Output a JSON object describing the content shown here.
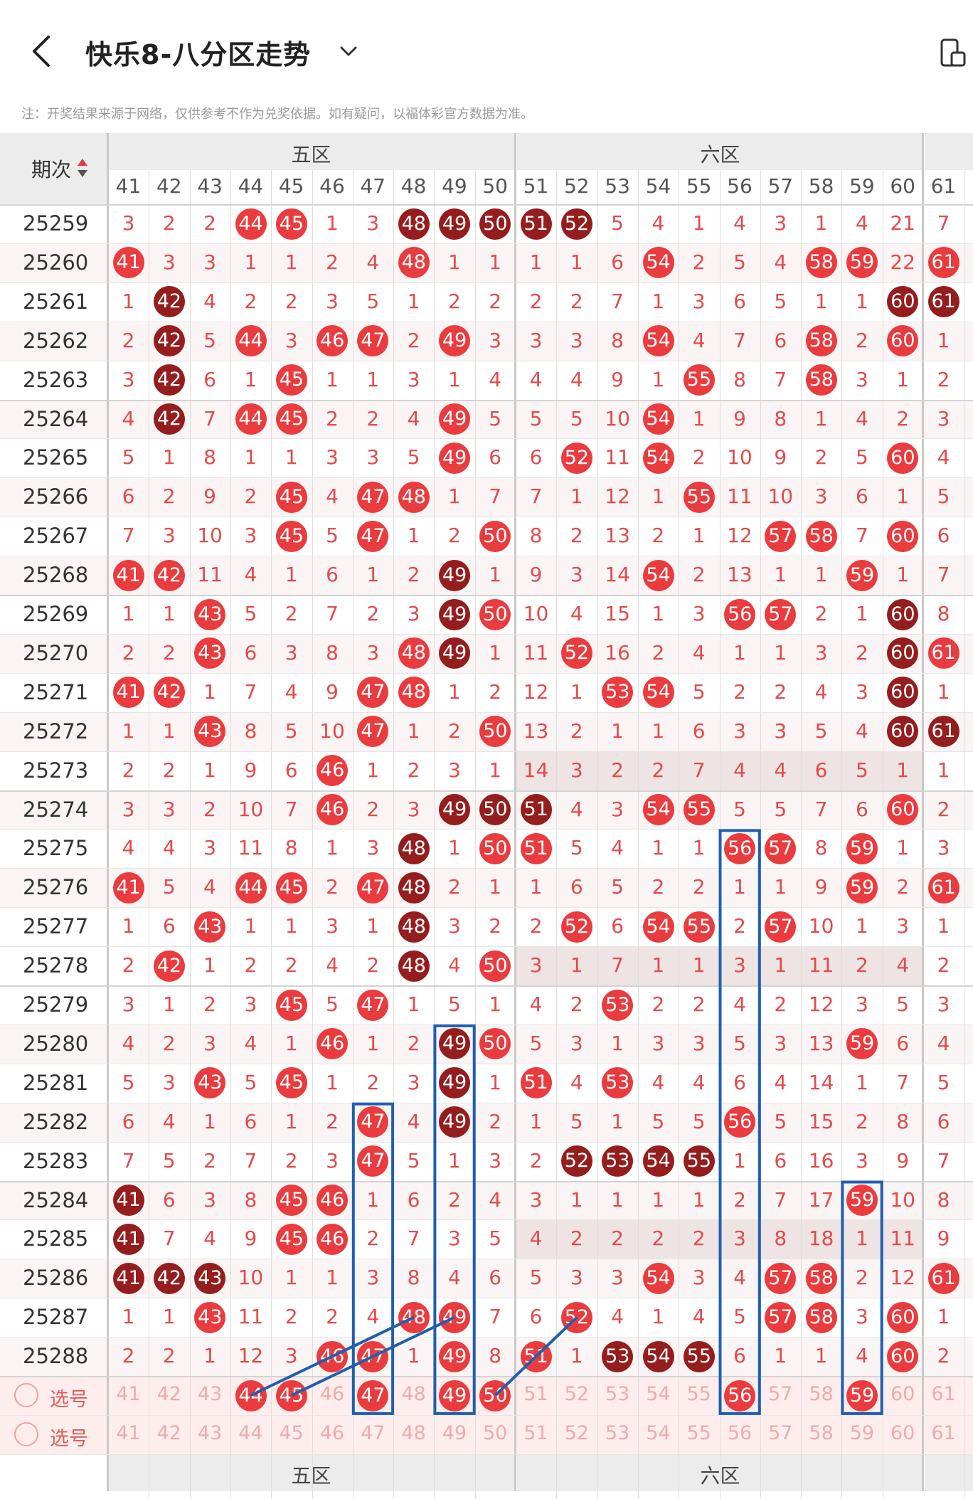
{
  "header": {
    "title": "快乐8-八分区走势"
  },
  "note": "注：开奖结果来源于网络，仅供参考不作为兑奖依据。如有疑问，以福体彩官方数据为准。",
  "table_header": {
    "period_label": "期次"
  },
  "zones": [
    {
      "label": "五区"
    },
    {
      "label": "六区"
    }
  ],
  "columns": [
    "41",
    "42",
    "43",
    "44",
    "45",
    "46",
    "47",
    "48",
    "49",
    "50",
    "51",
    "52",
    "53",
    "54",
    "55",
    "56",
    "57",
    "58",
    "59",
    "60",
    "61"
  ],
  "pick_label": "选号",
  "rows": [
    {
      "period": "25259",
      "cells": [
        "3",
        "2",
        "2",
        "44r",
        "45r",
        "1",
        "3",
        "48d",
        "49d",
        "50d",
        "51d",
        "52d",
        "5",
        "4",
        "1",
        "4",
        "3",
        "1",
        "4",
        "21",
        "7"
      ]
    },
    {
      "period": "25260",
      "cells": [
        "41r",
        "3",
        "3",
        "1",
        "1",
        "2",
        "4",
        "48r",
        "1",
        "1",
        "1",
        "1",
        "6",
        "54r",
        "2",
        "5",
        "4",
        "58r",
        "59r",
        "22",
        "61r"
      ]
    },
    {
      "period": "25261",
      "cells": [
        "1",
        "42d",
        "4",
        "2",
        "2",
        "3",
        "5",
        "1",
        "2",
        "2",
        "2",
        "2",
        "7",
        "1",
        "3",
        "6",
        "5",
        "1",
        "1",
        "60d",
        "61d"
      ]
    },
    {
      "period": "25262",
      "cells": [
        "2",
        "42d",
        "5",
        "44r",
        "3",
        "46r",
        "47r",
        "2",
        "49r",
        "3",
        "3",
        "3",
        "8",
        "54r",
        "4",
        "7",
        "6",
        "58r",
        "2",
        "60r",
        "1"
      ]
    },
    {
      "period": "25263",
      "cells": [
        "3",
        "42d",
        "6",
        "1",
        "45r",
        "1",
        "1",
        "3",
        "1",
        "4",
        "4",
        "4",
        "9",
        "1",
        "55r",
        "8",
        "7",
        "58r",
        "3",
        "1",
        "2"
      ]
    },
    {
      "period": "25264",
      "cells": [
        "4",
        "42d",
        "7",
        "44r",
        "45r",
        "2",
        "2",
        "4",
        "49r",
        "5",
        "5",
        "5",
        "10",
        "54r",
        "1",
        "9",
        "8",
        "1",
        "4",
        "2",
        "3"
      ]
    },
    {
      "period": "25265",
      "cells": [
        "5",
        "1",
        "8",
        "1",
        "1",
        "3",
        "3",
        "5",
        "49r",
        "6",
        "6",
        "52r",
        "11",
        "54r",
        "2",
        "10",
        "9",
        "2",
        "5",
        "60r",
        "4"
      ]
    },
    {
      "period": "25266",
      "cells": [
        "6",
        "2",
        "9",
        "2",
        "45r",
        "4",
        "47r",
        "48r",
        "1",
        "7",
        "7",
        "1",
        "12",
        "1",
        "55r",
        "11",
        "10",
        "3",
        "6",
        "1",
        "5"
      ]
    },
    {
      "period": "25267",
      "cells": [
        "7",
        "3",
        "10",
        "3",
        "45r",
        "5",
        "47r",
        "1",
        "2",
        "50r",
        "8",
        "2",
        "13",
        "2",
        "1",
        "12",
        "57r",
        "58r",
        "7",
        "60r",
        "6"
      ]
    },
    {
      "period": "25268",
      "cells": [
        "41r",
        "42r",
        "11",
        "4",
        "1",
        "6",
        "1",
        "2",
        "49d",
        "1",
        "9",
        "3",
        "14",
        "54r",
        "2",
        "13",
        "1",
        "1",
        "59r",
        "1",
        "7"
      ]
    },
    {
      "period": "25269",
      "cells": [
        "1",
        "1",
        "43r",
        "5",
        "2",
        "7",
        "2",
        "3",
        "49d",
        "50r",
        "10",
        "4",
        "15",
        "1",
        "3",
        "56r",
        "57r",
        "2",
        "1",
        "60d",
        "8"
      ]
    },
    {
      "period": "25270",
      "cells": [
        "2",
        "2",
        "43r",
        "6",
        "3",
        "8",
        "3",
        "48r",
        "49d",
        "1",
        "11",
        "52r",
        "16",
        "2",
        "4",
        "1",
        "1",
        "3",
        "2",
        "60d",
        "61r"
      ]
    },
    {
      "period": "25271",
      "cells": [
        "41r",
        "42r",
        "1",
        "7",
        "4",
        "9",
        "47r",
        "48r",
        "1",
        "2",
        "12",
        "1",
        "53r",
        "54r",
        "5",
        "2",
        "2",
        "4",
        "3",
        "60d",
        "1"
      ]
    },
    {
      "period": "25272",
      "cells": [
        "1",
        "1",
        "43r",
        "8",
        "5",
        "10",
        "47r",
        "1",
        "2",
        "50r",
        "13",
        "2",
        "1",
        "1",
        "6",
        "3",
        "3",
        "5",
        "4",
        "60d",
        "61d"
      ]
    },
    {
      "period": "25273",
      "cells": [
        "2",
        "2",
        "1",
        "9",
        "6",
        "46r",
        "1",
        "2",
        "3",
        "1",
        "14",
        "3",
        "2",
        "2",
        "7",
        "4",
        "4",
        "6",
        "5",
        "1",
        "1"
      ],
      "hl": true
    },
    {
      "period": "25274",
      "cells": [
        "3",
        "3",
        "2",
        "10",
        "7",
        "46r",
        "2",
        "3",
        "49d",
        "50d",
        "51d",
        "4",
        "3",
        "54r",
        "55r",
        "5",
        "5",
        "7",
        "6",
        "60r",
        "2"
      ]
    },
    {
      "period": "25275",
      "cells": [
        "4",
        "4",
        "3",
        "11",
        "8",
        "1",
        "3",
        "48d",
        "1",
        "50r",
        "51r",
        "5",
        "4",
        "1",
        "1",
        "56r",
        "57r",
        "8",
        "59r",
        "1",
        "3"
      ]
    },
    {
      "period": "25276",
      "cells": [
        "41r",
        "5",
        "4",
        "44r",
        "45r",
        "2",
        "47r",
        "48d",
        "2",
        "1",
        "1",
        "6",
        "5",
        "2",
        "2",
        "1",
        "1",
        "9",
        "59r",
        "2",
        "61r"
      ]
    },
    {
      "period": "25277",
      "cells": [
        "1",
        "6",
        "43r",
        "1",
        "1",
        "3",
        "1",
        "48d",
        "3",
        "2",
        "2",
        "52r",
        "6",
        "54r",
        "55r",
        "2",
        "57r",
        "10",
        "1",
        "3",
        "1"
      ]
    },
    {
      "period": "25278",
      "cells": [
        "2",
        "42r",
        "1",
        "2",
        "2",
        "4",
        "2",
        "48d",
        "4",
        "50r",
        "3",
        "1",
        "7",
        "1",
        "1",
        "3",
        "1",
        "11",
        "2",
        "4",
        "2"
      ],
      "hl": true
    },
    {
      "period": "25279",
      "cells": [
        "3",
        "1",
        "2",
        "3",
        "45r",
        "5",
        "47r",
        "1",
        "5",
        "1",
        "4",
        "2",
        "53r",
        "2",
        "2",
        "4",
        "2",
        "12",
        "3",
        "5",
        "3"
      ]
    },
    {
      "period": "25280",
      "cells": [
        "4",
        "2",
        "3",
        "4",
        "1",
        "46r",
        "1",
        "2",
        "49d",
        "50r",
        "5",
        "3",
        "1",
        "3",
        "3",
        "5",
        "3",
        "13",
        "59r",
        "6",
        "4"
      ]
    },
    {
      "period": "25281",
      "cells": [
        "5",
        "3",
        "43r",
        "5",
        "45r",
        "1",
        "2",
        "3",
        "49d",
        "1",
        "51r",
        "4",
        "53r",
        "4",
        "4",
        "6",
        "4",
        "14",
        "1",
        "7",
        "5"
      ]
    },
    {
      "period": "25282",
      "cells": [
        "6",
        "4",
        "1",
        "6",
        "1",
        "2",
        "47r",
        "4",
        "49d",
        "2",
        "1",
        "5",
        "1",
        "5",
        "5",
        "56r",
        "5",
        "15",
        "2",
        "8",
        "6"
      ]
    },
    {
      "period": "25283",
      "cells": [
        "7",
        "5",
        "2",
        "7",
        "2",
        "3",
        "47r",
        "5",
        "1",
        "3",
        "2",
        "52d",
        "53d",
        "54d",
        "55d",
        "1",
        "6",
        "16",
        "3",
        "9",
        "7"
      ]
    },
    {
      "period": "25284",
      "cells": [
        "41d",
        "6",
        "3",
        "8",
        "45r",
        "46r",
        "1",
        "6",
        "2",
        "4",
        "3",
        "1",
        "1",
        "1",
        "1",
        "2",
        "7",
        "17",
        "59r",
        "10",
        "8"
      ]
    },
    {
      "period": "25285",
      "cells": [
        "41d",
        "7",
        "4",
        "9",
        "45r",
        "46r",
        "2",
        "7",
        "3",
        "5",
        "4",
        "2",
        "2",
        "2",
        "2",
        "3",
        "8",
        "18",
        "1",
        "11",
        "9"
      ],
      "hl": true
    },
    {
      "period": "25286",
      "cells": [
        "41d",
        "42d",
        "43d",
        "10",
        "1",
        "1",
        "3",
        "8",
        "4",
        "6",
        "5",
        "3",
        "3",
        "54r",
        "3",
        "4",
        "57r",
        "58r",
        "2",
        "12",
        "61r"
      ]
    },
    {
      "period": "25287",
      "cells": [
        "1",
        "1",
        "43r",
        "11",
        "2",
        "2",
        "4",
        "48r",
        "49r",
        "7",
        "6",
        "52r",
        "4",
        "1",
        "4",
        "5",
        "57r",
        "58r",
        "3",
        "60r",
        "1"
      ]
    },
    {
      "period": "25288",
      "cells": [
        "2",
        "2",
        "1",
        "12",
        "3",
        "46r",
        "47r",
        "1",
        "49r",
        "8",
        "51r",
        "1",
        "53d",
        "54d",
        "55d",
        "6",
        "1",
        "1",
        "4",
        "60r",
        "2"
      ]
    }
  ],
  "pick_rows": [
    {
      "cells": [
        "41",
        "42",
        "43",
        "44r",
        "45r",
        "46",
        "47r",
        "48",
        "49r",
        "50r",
        "51",
        "52",
        "53",
        "54",
        "55",
        "56r",
        "57",
        "58",
        "59r",
        "60",
        "61"
      ]
    },
    {
      "cells": [
        "41",
        "42",
        "43",
        "44",
        "45",
        "46",
        "47",
        "48",
        "49",
        "50",
        "51",
        "52",
        "53",
        "54",
        "55",
        "56",
        "57",
        "58",
        "59",
        "60",
        "61"
      ]
    }
  ],
  "colors": {
    "ball_red": "#ea3b3e",
    "ball_dark": "#951d1d",
    "digit_red": "#e44a4a",
    "annotation_blue": "#1f5fb0"
  }
}
